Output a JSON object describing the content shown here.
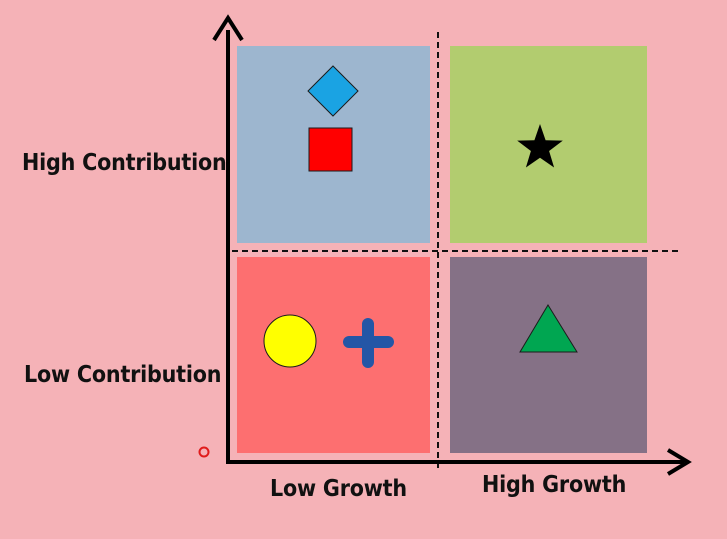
{
  "matrix": {
    "y_axis": {
      "high_label": "High Contribution",
      "low_label": "Low Contribution"
    },
    "x_axis": {
      "low_label": "Low Growth",
      "high_label": "High Growth"
    },
    "quadrants": [
      {
        "id": "high-contribution-low-growth",
        "color": "#9db6cf",
        "shapes": [
          "diamond-icon",
          "square-icon"
        ],
        "shape_colors": [
          "#1aa3e3",
          "#ff0000"
        ]
      },
      {
        "id": "high-contribution-high-growth",
        "color": "#b2cc6f",
        "shapes": [
          "star-icon"
        ],
        "shape_colors": [
          "#000000"
        ]
      },
      {
        "id": "low-contribution-low-growth",
        "color": "#fd6f70",
        "shapes": [
          "circle-icon",
          "plus-icon"
        ],
        "shape_colors": [
          "#ffff00",
          "#2456a6"
        ]
      },
      {
        "id": "low-contribution-high-growth",
        "color": "#857186",
        "shapes": [
          "triangle-icon"
        ],
        "shape_colors": [
          "#00a651"
        ]
      }
    ],
    "axis_color": "#000000",
    "divider_style": "dashed"
  }
}
